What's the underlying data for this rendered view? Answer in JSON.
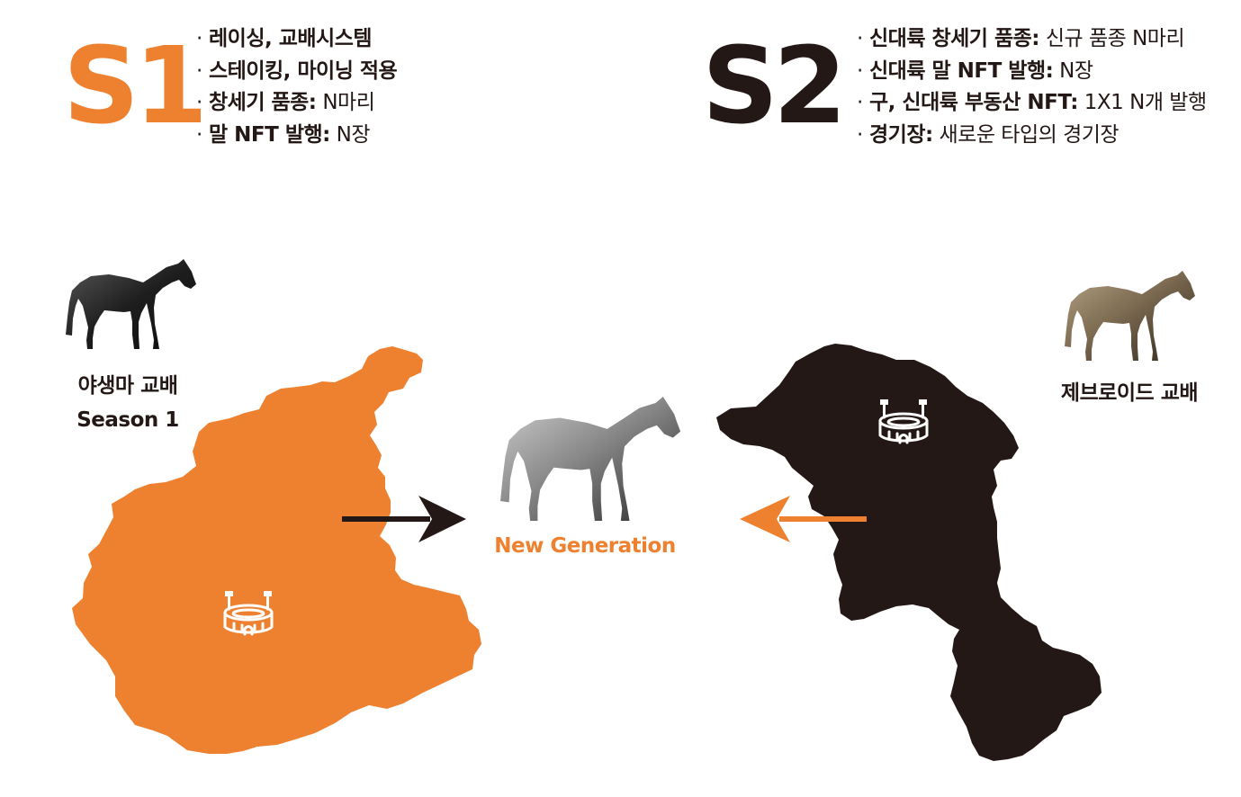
{
  "colors": {
    "orange": "#EE8130",
    "dark": "#231815",
    "white": "#ffffff"
  },
  "season1": {
    "badge": "S1",
    "features": [
      {
        "label": "레이싱, 교배시스템",
        "value": ""
      },
      {
        "label": "스테이킹, 마이닝 적용",
        "value": ""
      },
      {
        "label": "창세기 품종:",
        "value": "N마리"
      },
      {
        "label": "말 NFT 발행:",
        "value": "N장"
      }
    ],
    "caption_line1": "야생마 교배",
    "caption_line2": "Season 1"
  },
  "season2": {
    "badge": "S2",
    "features": [
      {
        "label": "신대륙 창세기 품종:",
        "value": "신규 품종 N마리"
      },
      {
        "label": "신대륙 말 NFT 발행:",
        "value": "N장"
      },
      {
        "label": "구, 신대륙 부동산 NFT:",
        "value": "1X1 N개 발행"
      },
      {
        "label": "경기장:",
        "value": "새로운 타입의 경기장"
      }
    ],
    "caption": "제브로이드 교배"
  },
  "center": {
    "caption": "New Generation"
  },
  "icons": {
    "bullet": "·",
    "s1_horse": "dark-horse-icon",
    "s2_horse": "bronze-horse-icon",
    "center_horse": "grey-horse-icon",
    "stadium": "stadium-icon",
    "arrow_right": "arrow-right-icon",
    "arrow_left": "arrow-left-icon"
  }
}
